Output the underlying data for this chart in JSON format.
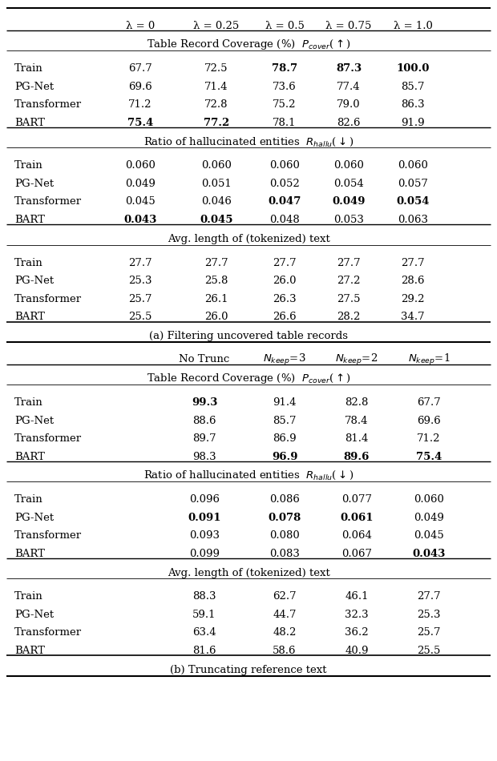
{
  "header_a": [
    "λ = 0",
    "λ = 0.25",
    "λ = 0.5",
    "λ = 0.75",
    "λ = 1.0"
  ],
  "header_b_display": [
    "No Trunc",
    "$N_{keep}$=3",
    "$N_{keep}$=2",
    "$N_{keep}$=1"
  ],
  "rows_label": [
    "Train",
    "PG-Net",
    "Transformer",
    "BART"
  ],
  "section_a": {
    "coverage": [
      [
        "67.7",
        "72.5",
        "78.7",
        "87.3",
        "100.0"
      ],
      [
        "69.6",
        "71.4",
        "73.6",
        "77.4",
        "85.7"
      ],
      [
        "71.2",
        "72.8",
        "75.2",
        "79.0",
        "86.3"
      ],
      [
        "75.4",
        "77.2",
        "78.1",
        "82.6",
        "91.9"
      ]
    ],
    "coverage_bold": [
      [
        false,
        false,
        true,
        true,
        true
      ],
      [
        false,
        false,
        false,
        false,
        false
      ],
      [
        false,
        false,
        false,
        false,
        false
      ],
      [
        true,
        true,
        false,
        false,
        false
      ]
    ],
    "hallu": [
      [
        "0.060",
        "0.060",
        "0.060",
        "0.060",
        "0.060"
      ],
      [
        "0.049",
        "0.051",
        "0.052",
        "0.054",
        "0.057"
      ],
      [
        "0.045",
        "0.046",
        "0.047",
        "0.049",
        "0.054"
      ],
      [
        "0.043",
        "0.045",
        "0.048",
        "0.053",
        "0.063"
      ]
    ],
    "hallu_bold": [
      [
        false,
        false,
        false,
        false,
        false
      ],
      [
        false,
        false,
        false,
        false,
        false
      ],
      [
        false,
        false,
        true,
        true,
        true
      ],
      [
        true,
        true,
        false,
        false,
        false
      ]
    ],
    "length": [
      [
        "27.7",
        "27.7",
        "27.7",
        "27.7",
        "27.7"
      ],
      [
        "25.3",
        "25.8",
        "26.0",
        "27.2",
        "28.6"
      ],
      [
        "25.7",
        "26.1",
        "26.3",
        "27.5",
        "29.2"
      ],
      [
        "25.5",
        "26.0",
        "26.6",
        "28.2",
        "34.7"
      ]
    ],
    "length_bold": [
      [
        false,
        false,
        false,
        false,
        false
      ],
      [
        false,
        false,
        false,
        false,
        false
      ],
      [
        false,
        false,
        false,
        false,
        false
      ],
      [
        false,
        false,
        false,
        false,
        false
      ]
    ]
  },
  "section_b": {
    "coverage": [
      [
        "99.3",
        "91.4",
        "82.8",
        "67.7"
      ],
      [
        "88.6",
        "85.7",
        "78.4",
        "69.6"
      ],
      [
        "89.7",
        "86.9",
        "81.4",
        "71.2"
      ],
      [
        "98.3",
        "96.9",
        "89.6",
        "75.4"
      ]
    ],
    "coverage_bold": [
      [
        true,
        false,
        false,
        false
      ],
      [
        false,
        false,
        false,
        false
      ],
      [
        false,
        false,
        false,
        false
      ],
      [
        false,
        true,
        true,
        true
      ]
    ],
    "hallu": [
      [
        "0.096",
        "0.086",
        "0.077",
        "0.060"
      ],
      [
        "0.091",
        "0.078",
        "0.061",
        "0.049"
      ],
      [
        "0.093",
        "0.080",
        "0.064",
        "0.045"
      ],
      [
        "0.099",
        "0.083",
        "0.067",
        "0.043"
      ]
    ],
    "hallu_bold": [
      [
        false,
        false,
        false,
        false
      ],
      [
        true,
        true,
        true,
        false
      ],
      [
        false,
        false,
        false,
        false
      ],
      [
        false,
        false,
        false,
        true
      ]
    ],
    "length": [
      [
        "88.3",
        "62.7",
        "46.1",
        "27.7"
      ],
      [
        "59.1",
        "44.7",
        "32.3",
        "25.3"
      ],
      [
        "63.4",
        "48.2",
        "36.2",
        "25.7"
      ],
      [
        "81.6",
        "58.6",
        "40.9",
        "25.5"
      ]
    ],
    "length_bold": [
      [
        false,
        false,
        false,
        false
      ],
      [
        false,
        false,
        false,
        false
      ],
      [
        false,
        false,
        false,
        false
      ],
      [
        false,
        false,
        false,
        false
      ]
    ]
  },
  "figsize": [
    6.2,
    9.5
  ],
  "dpi": 100
}
